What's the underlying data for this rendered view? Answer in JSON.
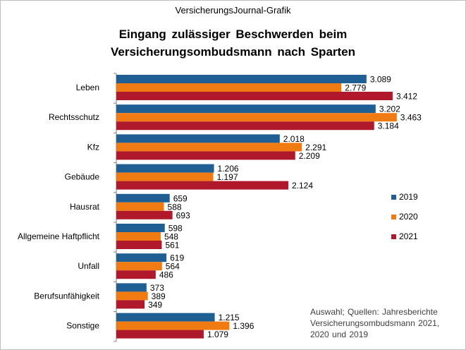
{
  "header": {
    "source_title": "VersicherungsJournal-Grafik"
  },
  "chart_data": {
    "type": "bar",
    "orientation": "horizontal",
    "title": "Eingang zulässiger Beschwerden beim Versicherungsombudsmann nach Sparten",
    "title_lines": [
      "Eingang zulässiger Beschwerden beim",
      "Versicherungsombudsmann nach Sparten"
    ],
    "categories": [
      "Leben",
      "Rechtsschutz",
      "Kfz",
      "Gebäude",
      "Hausrat",
      "Allgemeine Haftpflicht",
      "Unfall",
      "Berufsunfähigkeit",
      "Sonstige"
    ],
    "series": [
      {
        "name": "2019",
        "color": "#1f5f94",
        "values": [
          3089,
          3202,
          2018,
          1206,
          659,
          598,
          619,
          373,
          1215
        ],
        "labels": [
          "3.089",
          "3.202",
          "2.018",
          "1.206",
          "659",
          "598",
          "619",
          "373",
          "1.215"
        ]
      },
      {
        "name": "2020",
        "color": "#f07b12",
        "values": [
          2779,
          3463,
          2291,
          1197,
          588,
          548,
          564,
          389,
          1396
        ],
        "labels": [
          "2.779",
          "3.463",
          "2.291",
          "1.197",
          "588",
          "548",
          "564",
          "389",
          "1.396"
        ]
      },
      {
        "name": "2021",
        "color": "#b0192c",
        "values": [
          3412,
          3184,
          2209,
          2124,
          693,
          561,
          486,
          349,
          1079
        ],
        "labels": [
          "3.412",
          "3.184",
          "2.209",
          "2.124",
          "693",
          "561",
          "486",
          "349",
          "1.079"
        ]
      }
    ],
    "xlim": [
      0,
      3900
    ],
    "grid": false,
    "legend_position": "right"
  },
  "note": "Auswahl; Quellen: Jahresberichte\nVersicherungsombudsmann  2021,\n2020 und 2019"
}
